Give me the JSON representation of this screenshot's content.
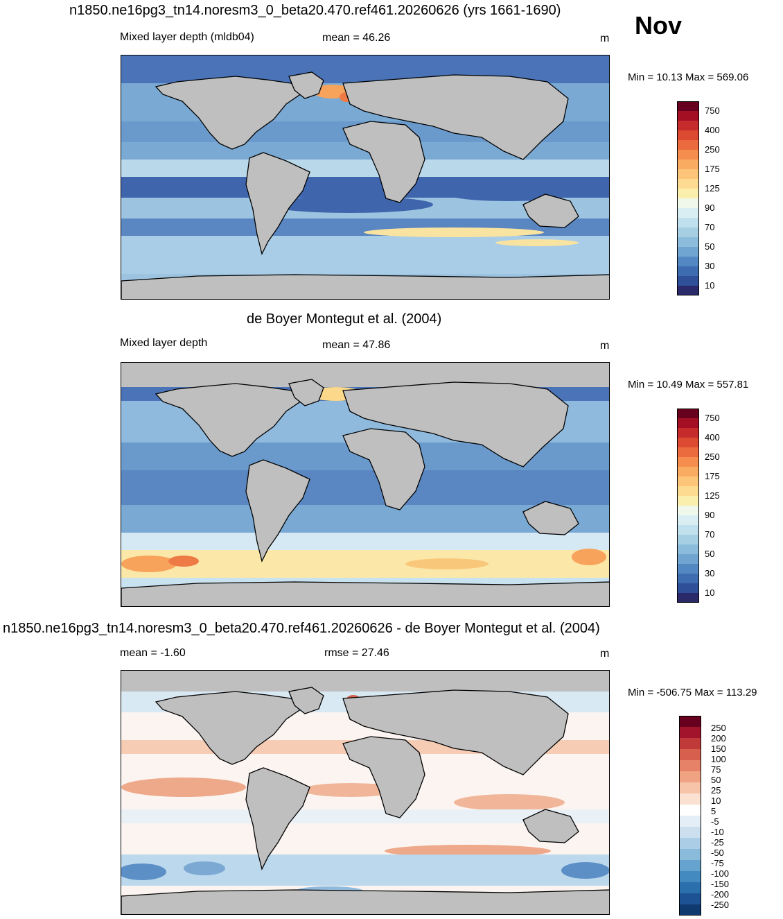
{
  "header": {
    "case_title": "n1850.ne16pg3_tn14.noresm3_0_beta20.470.ref461.20260626 (yrs 1661-1690)",
    "month": "Nov"
  },
  "panels": [
    {
      "id": "model",
      "section_title": "",
      "left_label": "Mixed layer depth (mldb04)",
      "center_label": "mean =  46.26",
      "units": "m",
      "minmax": "Min =  10.13 Max = 569.06",
      "colorbar_labels": [
        "750",
        "400",
        "250",
        "175",
        "125",
        "90",
        "70",
        "50",
        "30",
        "10"
      ],
      "colors": {
        "land": "#bfbfbf",
        "base_ocean": "#7aaad4",
        "deep_blue": "#3f66ad",
        "light": "#c9e2ef",
        "warm": "#f9d98a",
        "hot": "#ee7a45"
      }
    },
    {
      "id": "obs",
      "section_title": "de Boyer Montegut et al. (2004)",
      "left_label": "Mixed layer depth",
      "center_label": "mean =  47.86",
      "units": "m",
      "minmax": "Min =  10.49 Max = 557.81",
      "colorbar_labels": [
        "750",
        "400",
        "250",
        "175",
        "125",
        "90",
        "70",
        "50",
        "30",
        "10"
      ]
    },
    {
      "id": "diff",
      "section_title": "n1850.ne16pg3_tn14.noresm3_0_beta20.470.ref461.20260626 - de Boyer Montegut et al. (2004)",
      "left_label": "mean =  -1.60",
      "center_label": "rmse =  27.46",
      "units": "m",
      "minmax": "Min = -506.75 Max = 113.29",
      "colorbar_labels": [
        "250",
        "200",
        "150",
        "100",
        "75",
        "50",
        "25",
        "10",
        "5",
        "-5",
        "-10",
        "-25",
        "-50",
        "-75",
        "-100",
        "-150",
        "-200",
        "-250"
      ]
    }
  ]
}
